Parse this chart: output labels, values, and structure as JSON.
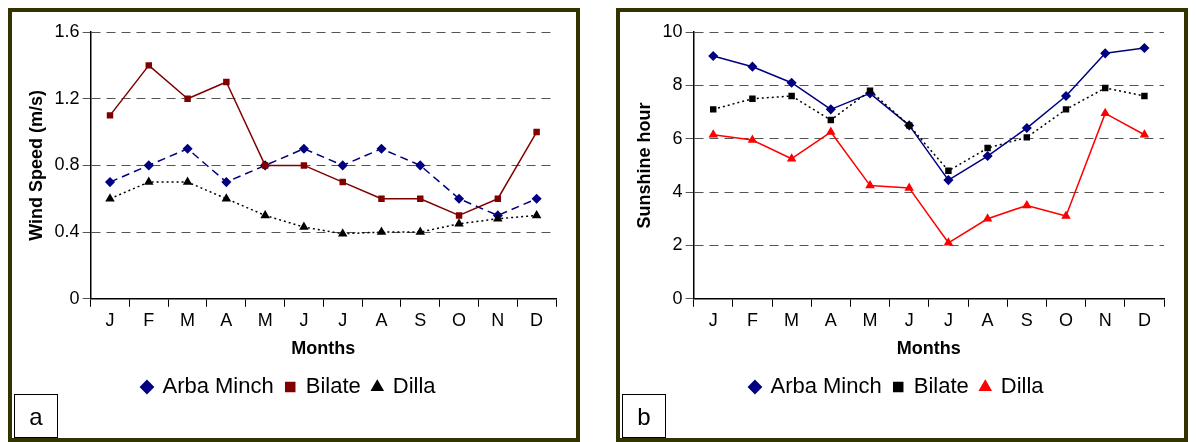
{
  "chart_data": [
    {
      "type": "line",
      "xlabel": "Months",
      "ylabel": "Wind Speed (m/s)",
      "categories": [
        "J",
        "F",
        "M",
        "A",
        "M",
        "J",
        "J",
        "A",
        "S",
        "O",
        "N",
        "D"
      ],
      "ylim": [
        0,
        1.6
      ],
      "yticks": [
        0,
        0.4,
        0.8,
        1.2,
        1.6
      ],
      "grid": "y",
      "legend": "bottom",
      "annotations": [
        "a"
      ],
      "series": [
        {
          "name": "Arba Minch",
          "color": "#000080",
          "marker": "diamond",
          "line_style": "dashed",
          "values": [
            0.7,
            0.8,
            0.9,
            0.7,
            0.8,
            0.9,
            0.8,
            0.9,
            0.8,
            0.6,
            0.5,
            0.6
          ]
        },
        {
          "name": "Bilate",
          "color": "#800000",
          "marker": "square",
          "line_style": "solid",
          "values": [
            1.1,
            1.4,
            1.2,
            1.3,
            0.8,
            0.8,
            0.7,
            0.6,
            0.6,
            0.5,
            0.6,
            1.0
          ]
        },
        {
          "name": "Dilla",
          "color": "#000000",
          "marker": "triangle",
          "line_style": "dotted",
          "values": [
            0.6,
            0.7,
            0.7,
            0.6,
            0.5,
            0.43,
            0.39,
            0.4,
            0.4,
            0.45,
            0.48,
            0.5
          ]
        }
      ]
    },
    {
      "type": "line",
      "xlabel": "Months",
      "ylabel": "Sunshine hour",
      "categories": [
        "J",
        "F",
        "M",
        "A",
        "M",
        "J",
        "J",
        "A",
        "S",
        "O",
        "N",
        "D"
      ],
      "ylim": [
        0,
        10
      ],
      "yticks": [
        0,
        2,
        4,
        6,
        8,
        10
      ],
      "grid": "y",
      "legend": "bottom",
      "annotations": [
        "b"
      ],
      "series": [
        {
          "name": "Arba Minch",
          "color": "#000080",
          "marker": "diamond",
          "line_style": "solid",
          "values": [
            9.1,
            8.7,
            8.1,
            7.1,
            7.7,
            6.5,
            4.45,
            5.35,
            6.4,
            7.6,
            9.2,
            9.4
          ]
        },
        {
          "name": "Bilate",
          "color": "#000000",
          "marker": "square",
          "line_style": "dotted",
          "values": [
            7.1,
            7.5,
            7.6,
            6.7,
            7.8,
            6.5,
            4.8,
            5.65,
            6.05,
            7.1,
            7.9,
            7.6
          ]
        },
        {
          "name": "Dilla",
          "color": "#ff0000",
          "marker": "triangle",
          "line_style": "solid",
          "values": [
            6.15,
            5.95,
            5.25,
            6.25,
            4.25,
            4.15,
            2.1,
            3.0,
            3.5,
            3.1,
            6.95,
            6.15
          ]
        }
      ]
    }
  ]
}
